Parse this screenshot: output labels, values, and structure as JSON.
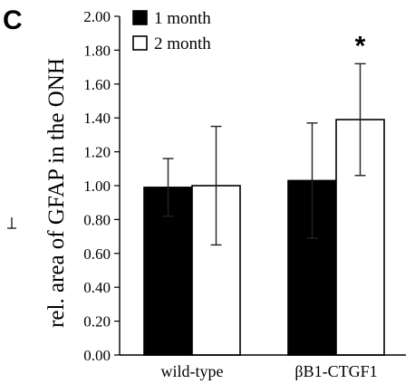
{
  "chart_data": {
    "type": "bar",
    "panel_label": "C",
    "ylabel": "rel. area of GFAP in the ONH",
    "ylim": [
      0,
      2
    ],
    "yticks": [
      "0.00",
      "0.20",
      "0.40",
      "0.60",
      "0.80",
      "1.00",
      "1.20",
      "1.40",
      "1.60",
      "1.80",
      "2.00"
    ],
    "categories": [
      "wild-type",
      "βB1-CTGF1"
    ],
    "series": [
      {
        "name": "1 month",
        "color": "#000000",
        "values": [
          0.99,
          1.03
        ],
        "error": [
          0.17,
          0.34
        ]
      },
      {
        "name": "2 month",
        "color": "#ffffff",
        "values": [
          1.0,
          1.39
        ],
        "error": [
          0.35,
          0.33
        ]
      }
    ],
    "annotations": [
      {
        "text": "*",
        "category": 1,
        "series": 1
      }
    ],
    "legend_position": "top-left",
    "grid": false
  }
}
